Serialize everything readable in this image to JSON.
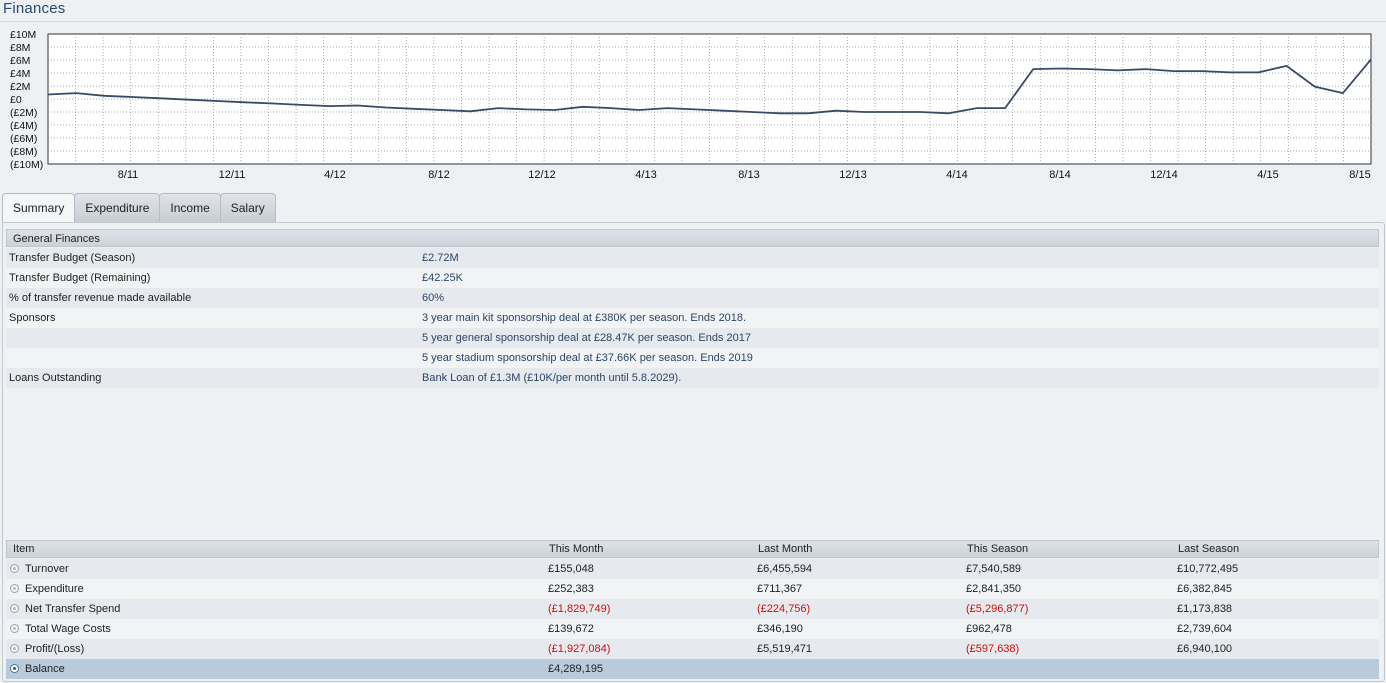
{
  "page_title": "Finances",
  "chart_data": {
    "type": "line",
    "ylim": [
      -10,
      10
    ],
    "y_ticks": [
      "£10M",
      "£8M",
      "£6M",
      "£4M",
      "£2M",
      "£0",
      "(£2M)",
      "(£4M)",
      "(£6M)",
      "(£8M)",
      "(£10M)"
    ],
    "x_ticks": [
      "8/11",
      "12/11",
      "4/12",
      "8/12",
      "12/12",
      "4/13",
      "8/13",
      "12/13",
      "4/14",
      "8/14",
      "12/14",
      "4/15",
      "8/15"
    ],
    "series": [
      {
        "values": [
          0.7,
          0.9,
          0.5,
          0.3,
          0.1,
          -0.1,
          -0.3,
          -0.5,
          -0.7,
          -0.9,
          -1.1,
          -1.0,
          -1.3,
          -1.5,
          -1.7,
          -1.9,
          -1.4,
          -1.6,
          -1.7,
          -1.2,
          -1.4,
          -1.7,
          -1.4,
          -1.6,
          -1.8,
          -2.0,
          -2.2,
          -2.2,
          -1.8,
          -2.0,
          -2.0,
          -2.0,
          -2.2,
          -1.4,
          -1.4,
          4.6,
          4.7,
          4.6,
          4.4,
          4.6,
          4.3,
          4.3,
          4.1,
          4.1,
          5.1,
          1.9,
          0.9,
          6.1
        ]
      }
    ]
  },
  "tabs": [
    "Summary",
    "Expenditure",
    "Income",
    "Salary"
  ],
  "general_finances": {
    "header": "General Finances",
    "rows": [
      {
        "label": "Transfer Budget (Season)",
        "value": "£2.72M"
      },
      {
        "label": "Transfer Budget (Remaining)",
        "value": "£42.25K"
      },
      {
        "label": "% of transfer revenue made available",
        "value": "60%"
      },
      {
        "label": "Sponsors",
        "value": "3 year main kit sponsorship deal at £380K per season. Ends 2018."
      },
      {
        "label": "",
        "value": "5 year general sponsorship deal at £28.47K per season. Ends 2017"
      },
      {
        "label": "",
        "value": "5 year stadium sponsorship deal at £37.66K per season. Ends 2019"
      },
      {
        "label": "Loans Outstanding",
        "value": "Bank Loan of £1.3M (£10K/per month until 5.8.2029)."
      }
    ]
  },
  "finance_table": {
    "headers": [
      "Item",
      "This Month",
      "Last Month",
      "This Season",
      "Last Season"
    ],
    "rows": [
      {
        "item": "Turnover",
        "cells": [
          "£155,048",
          "£6,455,594",
          "£7,540,589",
          "£10,772,495"
        ],
        "neg": [
          false,
          false,
          false,
          false
        ]
      },
      {
        "item": "Expenditure",
        "cells": [
          "£252,383",
          "£711,367",
          "£2,841,350",
          "£6,382,845"
        ],
        "neg": [
          false,
          false,
          false,
          false
        ]
      },
      {
        "item": "Net Transfer Spend",
        "cells": [
          "(£1,829,749)",
          "(£224,756)",
          "(£5,296,877)",
          "£1,173,838"
        ],
        "neg": [
          true,
          true,
          true,
          false
        ]
      },
      {
        "item": "Total Wage Costs",
        "cells": [
          "£139,672",
          "£346,190",
          "£962,478",
          "£2,739,604"
        ],
        "neg": [
          false,
          false,
          false,
          false
        ]
      },
      {
        "item": "Profit/(Loss)",
        "cells": [
          "(£1,927,084)",
          "£5,519,471",
          "(£597,638)",
          "£6,940,100"
        ],
        "neg": [
          true,
          false,
          true,
          false
        ]
      },
      {
        "item": "Balance",
        "cells": [
          "£4,289,195",
          "",
          "",
          ""
        ],
        "neg": [
          false,
          false,
          false,
          false
        ],
        "selected": true
      }
    ]
  },
  "colors": {
    "line": "#3a4a66",
    "negative": "#cc1111",
    "selected_row": "#b9cbdb",
    "title": "#2a4a6a"
  }
}
